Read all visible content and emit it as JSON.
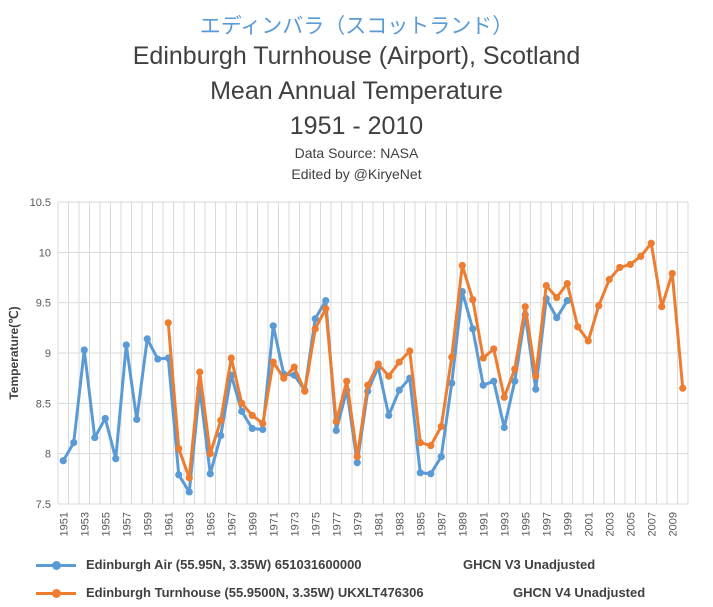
{
  "header": {
    "japanese_title": "エディンバラ（スコットランド）",
    "title_line1": "Edinburgh Turnhouse (Airport), Scotland",
    "title_line2": "Mean Annual Temperature",
    "title_line3": "1951 - 2010",
    "data_source": "Data Source: NASA",
    "edited_by": "Edited by @KiryeNet"
  },
  "legend": {
    "v3_name": "Edinburgh Air (55.95N, 3.35W) 651031600000",
    "v3_version": "GHCN V3 Unadjusted",
    "v4_name": "Edinburgh Turnhouse (55.9500N, 3.35W) UKXLT476306",
    "v4_version": "GHCN V4 Unadjusted"
  },
  "colors": {
    "v3": "#5b9bd5",
    "v4": "#ed7d31",
    "grid": "#d9d9d9"
  },
  "chart_data": {
    "type": "line",
    "ylabel": "Temperature(℃)",
    "xlabel": "",
    "ylim": [
      7.5,
      10.5
    ],
    "y_ticks": [
      "7.5",
      "8",
      "8.5",
      "9",
      "9.5",
      "10",
      "10.5"
    ],
    "x_tick_labels": [
      "1951",
      "1953",
      "1955",
      "1957",
      "1959",
      "1961",
      "1963",
      "1965",
      "1967",
      "1969",
      "1971",
      "1973",
      "1975",
      "1977",
      "1979",
      "1981",
      "1983",
      "1985",
      "1987",
      "1989",
      "1991",
      "1993",
      "1995",
      "1997",
      "1999",
      "2001",
      "2003",
      "2005",
      "2007",
      "2009"
    ],
    "x_start": 1951,
    "x_end": 2010,
    "grid": "vertical and horizontal",
    "series": [
      {
        "name": "Edinburgh Air (55.95N, 3.35W) 651031600000 GHCN V3 Unadjusted",
        "start_year": 1951,
        "values": [
          7.93,
          8.11,
          9.03,
          8.16,
          8.35,
          7.95,
          9.08,
          8.34,
          9.14,
          8.94,
          8.95,
          7.79,
          7.62,
          8.65,
          7.8,
          8.18,
          8.78,
          8.42,
          8.25,
          8.24,
          9.27,
          8.79,
          8.78,
          8.63,
          9.34,
          9.52,
          8.23,
          8.63,
          7.91,
          8.62,
          8.86,
          8.38,
          8.63,
          8.75,
          7.81,
          7.8,
          7.97,
          8.7,
          9.61,
          9.24,
          8.68,
          8.72,
          8.26,
          8.72,
          9.38,
          8.64,
          9.54,
          9.35,
          9.52
        ]
      },
      {
        "name": "Edinburgh Turnhouse (55.9500N, 3.35W) UKXLT476306 GHCN V4 Unadjusted",
        "start_year": 1961,
        "values": [
          9.3,
          8.05,
          7.76,
          8.81,
          8.0,
          8.33,
          8.95,
          8.5,
          8.38,
          8.3,
          8.91,
          8.75,
          8.86,
          8.62,
          9.24,
          9.44,
          8.32,
          8.72,
          7.97,
          8.68,
          8.89,
          8.77,
          8.91,
          9.02,
          8.11,
          8.08,
          8.27,
          8.96,
          9.87,
          9.53,
          8.95,
          9.04,
          8.56,
          8.84,
          9.46,
          8.77,
          9.67,
          9.55,
          9.69,
          9.26,
          9.12,
          9.47,
          9.73,
          9.85,
          9.88,
          9.96,
          10.09,
          9.46,
          9.79,
          8.65
        ]
      }
    ]
  }
}
